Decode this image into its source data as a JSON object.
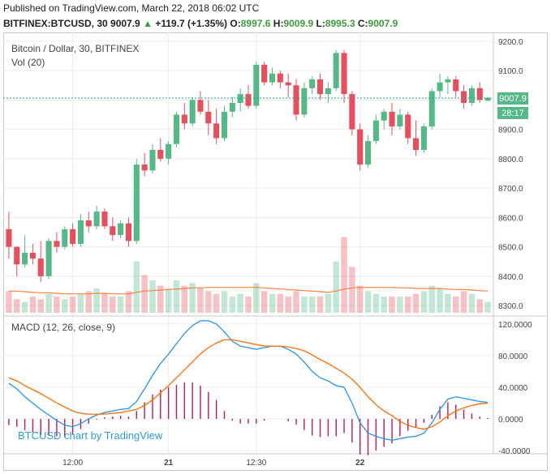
{
  "header": {
    "published": "Published on TradingView.com, March 22, 2018 06:02 UTC",
    "symbol": "BITFINEX:BTCUSD, 30",
    "last": "9007.9",
    "change": "+119.7 (+1.35%)",
    "o_label": "O:",
    "o": "8997.6",
    "h_label": "H:",
    "h": "9009.9",
    "l_label": "L:",
    "l": "8995.3",
    "c_label": "C:",
    "c": "9007.9"
  },
  "price_pane": {
    "title": "Bitcoin / Dollar, 30, BITFINEX",
    "vol_title": "Vol (20)",
    "price_badge": "9007.9",
    "time_badge": "28:17"
  },
  "macd_pane": {
    "title": "MACD (12, 26, close, 9)",
    "watermark": "BTCUSD chart by TradingView"
  },
  "colors": {
    "up": "#53b987",
    "down": "#eb4d5c",
    "macd": "#2196f3",
    "signal": "#ff6d00",
    "hist": "#c2185b",
    "grid": "#ececec"
  },
  "chart_data": [
    {
      "type": "candlestick",
      "title": "Bitcoin / Dollar, 30, BITFINEX",
      "ylim": [
        8270,
        9230
      ],
      "y_ticks": [
        "9200.0",
        "9100.0",
        "9000.0",
        "8900.0",
        "8800.0",
        "8700.0",
        "8600.0",
        "8500.0",
        "8400.0",
        "8300.0"
      ],
      "x_ticks": [
        "12:00",
        "21",
        "12:30",
        "22"
      ],
      "candles": [
        [
          8560,
          8620,
          8460,
          8500
        ],
        [
          8500,
          8500,
          8400,
          8440
        ],
        [
          8440,
          8540,
          8430,
          8480
        ],
        [
          8480,
          8510,
          8440,
          8460
        ],
        [
          8460,
          8520,
          8380,
          8400
        ],
        [
          8400,
          8530,
          8390,
          8520
        ],
        [
          8520,
          8550,
          8480,
          8500
        ],
        [
          8500,
          8570,
          8490,
          8560
        ],
        [
          8560,
          8580,
          8500,
          8510
        ],
        [
          8510,
          8610,
          8500,
          8590
        ],
        [
          8590,
          8620,
          8550,
          8570
        ],
        [
          8570,
          8640,
          8560,
          8620
        ],
        [
          8620,
          8630,
          8560,
          8570
        ],
        [
          8570,
          8600,
          8520,
          8540
        ],
        [
          8540,
          8590,
          8530,
          8580
        ],
        [
          8580,
          8600,
          8500,
          8520
        ],
        [
          8520,
          8800,
          8510,
          8780
        ],
        [
          8780,
          8820,
          8740,
          8760
        ],
        [
          8760,
          8850,
          8750,
          8830
        ],
        [
          8830,
          8870,
          8790,
          8800
        ],
        [
          8800,
          8860,
          8780,
          8850
        ],
        [
          8850,
          8960,
          8840,
          8950
        ],
        [
          8950,
          8990,
          8900,
          8920
        ],
        [
          8920,
          9010,
          8910,
          9000
        ],
        [
          9000,
          9030,
          8950,
          8960
        ],
        [
          8960,
          9000,
          8880,
          8920
        ],
        [
          8920,
          8970,
          8850,
          8870
        ],
        [
          8870,
          8980,
          8860,
          8960
        ],
        [
          8960,
          9010,
          8940,
          8990
        ],
        [
          8990,
          9040,
          8960,
          9020
        ],
        [
          9020,
          9050,
          8970,
          8980
        ],
        [
          8980,
          9130,
          8970,
          9120
        ],
        [
          9120,
          9130,
          9050,
          9060
        ],
        [
          9060,
          9110,
          9050,
          9090
        ],
        [
          9090,
          9100,
          9040,
          9060
        ],
        [
          9060,
          9090,
          9010,
          9050
        ],
        [
          9050,
          9070,
          8930,
          8950
        ],
        [
          8950,
          9060,
          8940,
          9040
        ],
        [
          9040,
          9080,
          9020,
          9070
        ],
        [
          9070,
          9090,
          9000,
          9020
        ],
        [
          9020,
          9060,
          8990,
          9040
        ],
        [
          9040,
          9170,
          9030,
          9160
        ],
        [
          9160,
          9170,
          8990,
          9020
        ],
        [
          9020,
          9030,
          8880,
          8900
        ],
        [
          8900,
          8920,
          8760,
          8780
        ],
        [
          8780,
          8880,
          8770,
          8860
        ],
        [
          8860,
          8950,
          8850,
          8930
        ],
        [
          8930,
          8970,
          8900,
          8960
        ],
        [
          8960,
          8990,
          8880,
          8910
        ],
        [
          8910,
          8970,
          8900,
          8950
        ],
        [
          8950,
          8960,
          8850,
          8870
        ],
        [
          8870,
          8930,
          8810,
          8830
        ],
        [
          8830,
          8920,
          8820,
          8910
        ],
        [
          8910,
          9040,
          8900,
          9030
        ],
        [
          9030,
          9090,
          9010,
          9060
        ],
        [
          9060,
          9080,
          9020,
          9070
        ],
        [
          9070,
          9080,
          9010,
          9030
        ],
        [
          9030,
          9050,
          8970,
          8990
        ],
        [
          8990,
          9050,
          8980,
          9040
        ],
        [
          9040,
          9060,
          8990,
          9000
        ],
        [
          8997.6,
          9009.9,
          8995.3,
          9007.9
        ]
      ],
      "volume": {
        "ylim": [
          0,
          180
        ],
        "values": [
          40,
          25,
          20,
          30,
          25,
          35,
          30,
          25,
          30,
          35,
          40,
          45,
          35,
          30,
          30,
          40,
          95,
          70,
          60,
          50,
          45,
          60,
          50,
          55,
          45,
          40,
          35,
          40,
          30,
          35,
          30,
          55,
          40,
          35,
          35,
          30,
          40,
          30,
          30,
          30,
          35,
          95,
          140,
          85,
          50,
          40,
          35,
          30,
          30,
          30,
          30,
          35,
          40,
          50,
          45,
          35,
          30,
          40,
          35,
          25,
          20
        ],
        "ma20": [
          40,
          40,
          39,
          38,
          37,
          37,
          36,
          35,
          35,
          35,
          35,
          36,
          36,
          35,
          35,
          35,
          38,
          40,
          41,
          42,
          43,
          44,
          45,
          46,
          46,
          47,
          47,
          47,
          47,
          47,
          47,
          47,
          46,
          45,
          44,
          43,
          42,
          41,
          40,
          39,
          38,
          40,
          44,
          46,
          47,
          47,
          47,
          47,
          47,
          46,
          46,
          45,
          45,
          45,
          45,
          44,
          43,
          43,
          42,
          41,
          40
        ]
      }
    },
    {
      "type": "line",
      "title": "MACD (12, 26, close, 9)",
      "ylim": [
        -42,
        128
      ],
      "y_ticks": [
        "120.0000",
        "80.0000",
        "40.0000",
        "0.0000",
        "-40.0000"
      ],
      "series": [
        {
          "name": "MACD",
          "values": [
            45,
            38,
            28,
            20,
            12,
            5,
            -2,
            -8,
            -10,
            -6,
            0,
            5,
            8,
            10,
            12,
            13,
            22,
            38,
            55,
            70,
            82,
            95,
            108,
            118,
            124,
            124,
            120,
            110,
            98,
            92,
            90,
            88,
            90,
            92,
            92,
            88,
            82,
            72,
            60,
            52,
            48,
            42,
            40,
            20,
            -5,
            -18,
            -22,
            -25,
            -27,
            -25,
            -23,
            -22,
            -18,
            -5,
            12,
            25,
            28,
            26,
            24,
            22,
            21
          ]
        },
        {
          "name": "Signal",
          "values": [
            52,
            48,
            42,
            37,
            32,
            26,
            20,
            15,
            10,
            7,
            6,
            6,
            6,
            7,
            8,
            10,
            12,
            17,
            24,
            33,
            42,
            52,
            62,
            72,
            82,
            90,
            96,
            100,
            100,
            98,
            96,
            94,
            92,
            92,
            92,
            91,
            89,
            86,
            81,
            75,
            70,
            64,
            58,
            50,
            40,
            28,
            18,
            10,
            4,
            -3,
            -8,
            -11,
            -13,
            -10,
            -4,
            4,
            10,
            14,
            17,
            19,
            20
          ]
        },
        {
          "name": "Histogram",
          "values": [
            -8,
            -10,
            -14,
            -17,
            -20,
            -21,
            -22,
            -23,
            -20,
            -13,
            -6,
            -1,
            2,
            3,
            4,
            3,
            10,
            21,
            31,
            37,
            40,
            43,
            46,
            46,
            42,
            34,
            24,
            10,
            -2,
            -6,
            -6,
            -6,
            -2,
            0,
            0,
            -3,
            -7,
            -14,
            -21,
            -23,
            -22,
            -22,
            -18,
            -30,
            -45,
            -46,
            -40,
            -35,
            -31,
            -22,
            -15,
            -11,
            -5,
            5,
            16,
            21,
            18,
            12,
            7,
            3,
            1
          ]
        }
      ]
    }
  ]
}
